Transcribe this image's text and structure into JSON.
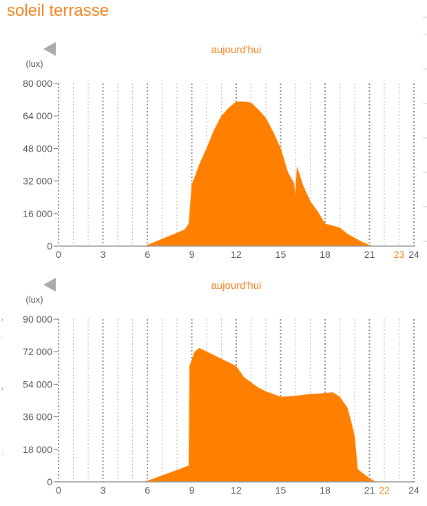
{
  "page": {
    "title": "soleil terrasse"
  },
  "colors": {
    "accent": "#f58220",
    "fill": "#ff8000",
    "grid_major": "#888888",
    "grid_minor": "#bbbbbb",
    "axis_text": "#555555",
    "nav_arrow": "#aaaaaa"
  },
  "icons": {
    "nav_prev": "triangle-left-icon"
  },
  "chart_data": [
    {
      "type": "area",
      "title": "aujourd'hui",
      "ylabel": "(lux)",
      "xlabel": "",
      "xlim": [
        0,
        24
      ],
      "ylim": [
        0,
        80000
      ],
      "yticks": [
        0,
        16000,
        32000,
        48000,
        64000,
        80000
      ],
      "ytick_labels": [
        "0",
        "16 000",
        "32 000",
        "48 000",
        "64 000",
        "80 000"
      ],
      "xticks": [
        0,
        3,
        6,
        9,
        12,
        15,
        18,
        21,
        24
      ],
      "xtick_labels": [
        "0",
        "3",
        "6",
        "9",
        "12",
        "15",
        "18",
        "21",
        "24"
      ],
      "current_hour": {
        "value": 23,
        "label": "23"
      },
      "grid": true,
      "series": [
        {
          "x": [
            0,
            5.8,
            6.5,
            7,
            7.5,
            8,
            8.5,
            8.8,
            9,
            9.5,
            10,
            10.5,
            11,
            11.5,
            12,
            12.5,
            13,
            13.5,
            14,
            14.5,
            15,
            15.5,
            15.9,
            16,
            16.1,
            16.5,
            17,
            17.5,
            18,
            18.5,
            19,
            19.5,
            20,
            20.5,
            21,
            21.3,
            24
          ],
          "y": [
            0,
            0,
            2000,
            3500,
            5000,
            6500,
            8000,
            11000,
            30000,
            40000,
            48000,
            57000,
            64000,
            68000,
            71000,
            71000,
            70500,
            67000,
            63000,
            56000,
            48000,
            36000,
            31000,
            24000,
            39000,
            30000,
            22000,
            17000,
            11000,
            10000,
            9000,
            6000,
            4000,
            2000,
            500,
            0,
            0
          ]
        }
      ]
    },
    {
      "type": "area",
      "title": "aujourd'hui",
      "ylabel": "(lux)",
      "xlabel": "",
      "xlim": [
        0,
        24
      ],
      "ylim": [
        0,
        90000
      ],
      "yticks": [
        0,
        18000,
        36000,
        54000,
        72000,
        90000
      ],
      "ytick_labels": [
        "0",
        "18 000",
        "36 000",
        "54 000",
        "72 000",
        "90 000"
      ],
      "xticks": [
        0,
        3,
        6,
        9,
        12,
        15,
        18,
        21,
        24
      ],
      "xtick_labels": [
        "0",
        "3",
        "6",
        "9",
        "12",
        "15",
        "18",
        "21",
        "24"
      ],
      "current_hour": {
        "value": 22,
        "label": "22"
      },
      "grid": true,
      "series": [
        {
          "x": [
            0,
            5.8,
            6.5,
            7,
            7.5,
            8,
            8.5,
            8.8,
            8.85,
            9.2,
            9.5,
            10,
            10.5,
            11,
            11.5,
            12,
            12.5,
            13,
            13.5,
            14,
            14.5,
            15,
            16,
            17,
            18,
            18.5,
            19,
            19.5,
            19.8,
            20,
            20.2,
            20.5,
            21,
            21.4,
            24
          ],
          "y": [
            0,
            0,
            2000,
            3500,
            5000,
            6500,
            8000,
            9000,
            64000,
            72000,
            74000,
            72000,
            70000,
            68000,
            66000,
            64000,
            58000,
            55000,
            52000,
            50000,
            48500,
            47000,
            47500,
            48500,
            49000,
            49500,
            47000,
            41000,
            32000,
            25000,
            7000,
            5000,
            2000,
            0,
            0
          ]
        }
      ]
    }
  ]
}
